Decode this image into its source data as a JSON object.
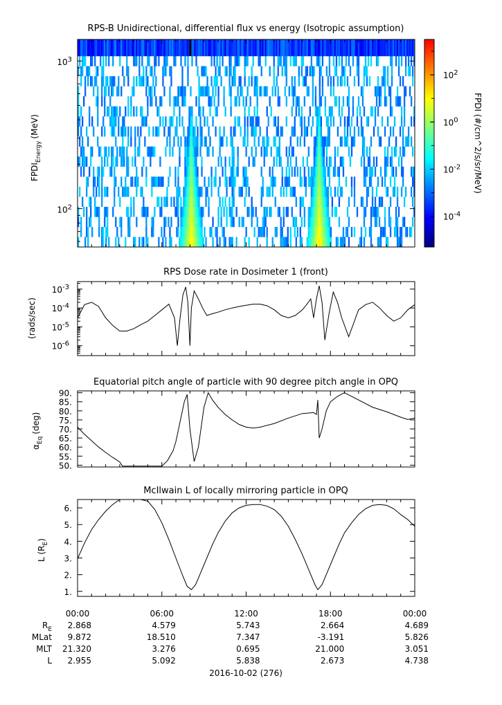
{
  "chart_data": [
    {
      "type": "heatmap",
      "title": "RPS-B  Unidirectional, differential flux vs energy (Isotropic assumption)",
      "ylabel_main": "FPDI",
      "ylabel_sub": "Energy",
      "ylabel_unit": "(MeV)",
      "ylog": true,
      "ylim": [
        55,
        1400
      ],
      "ytick_base": "10",
      "ytick_exps": [
        "3",
        "2"
      ],
      "ytick_values": [
        1000,
        100
      ],
      "colorbar": {
        "label": "FPDI (#/cm^2/s/sr/MeV)",
        "log": true,
        "range_exp": [
          -5.3,
          3.5
        ],
        "tick_base": "10",
        "tick_exps": [
          "2",
          "0",
          "-2",
          "-4"
        ],
        "tick_values": [
          2,
          0,
          -2,
          -4
        ],
        "colors": [
          "#00007f",
          "#0000ff",
          "#007fff",
          "#00ffff",
          "#7fff7f",
          "#ffff00",
          "#ff7f00",
          "#ff0000"
        ]
      },
      "peaks": [
        {
          "x_hours": 8.1,
          "log_peak": 1.2
        },
        {
          "x_hours": 17.2,
          "log_peak": 1.3
        }
      ]
    },
    {
      "type": "line",
      "title": "RPS  Dose rate in Dosimeter 1 (front)",
      "ylabel": "(rads/sec)",
      "ylog": true,
      "ylim": [
        3e-07,
        0.0025
      ],
      "ytick_base": "10",
      "ytick_exps": [
        "-3",
        "-4",
        "-5",
        "-6"
      ],
      "ytick_values": [
        0.001,
        0.0001,
        1e-05,
        1e-06
      ],
      "x_hours": [
        0,
        0.5,
        1.0,
        1.5,
        2.0,
        2.5,
        3.0,
        3.5,
        4.0,
        4.5,
        5.0,
        5.5,
        6.0,
        6.5,
        6.9,
        7.1,
        7.3,
        7.5,
        7.7,
        7.85,
        8.0,
        8.1,
        8.3,
        8.6,
        8.9,
        9.2,
        9.6,
        10.0,
        10.5,
        11.0,
        11.5,
        12.0,
        12.5,
        13.0,
        13.5,
        14.0,
        14.5,
        15.0,
        15.5,
        16.0,
        16.3,
        16.6,
        16.8,
        17.0,
        17.2,
        17.4,
        17.6,
        17.9,
        18.2,
        18.5,
        18.8,
        19.3,
        20.0,
        20.5,
        21.0,
        21.5,
        22.0,
        22.5,
        23.0,
        23.5,
        24.0
      ],
      "y": [
        3e-05,
        0.00015,
        0.0002,
        0.00012,
        3e-05,
        1.2e-05,
        6e-06,
        6e-06,
        8e-06,
        1.3e-05,
        2e-05,
        4e-05,
        8e-05,
        0.00016,
        3e-05,
        1e-06,
        3e-05,
        0.0005,
        0.0013,
        0.0002,
        1e-06,
        0.0001,
        0.0008,
        0.0003,
        0.0001,
        4e-05,
        5e-05,
        6e-05,
        8e-05,
        0.0001,
        0.00012,
        0.00014,
        0.00016,
        0.00016,
        0.00013,
        8e-05,
        4e-05,
        3e-05,
        4e-05,
        8e-05,
        0.00015,
        0.0003,
        3e-05,
        0.0003,
        0.0015,
        0.0002,
        2e-06,
        5e-05,
        0.0007,
        0.0002,
        3e-05,
        3e-06,
        8e-05,
        0.00015,
        0.0002,
        0.0001,
        4e-05,
        2e-05,
        3e-05,
        8e-05,
        0.00015
      ]
    },
    {
      "type": "line",
      "title": "Equatorial pitch angle of particle with 90 degree pitch angle in OPQ",
      "ylabel_main": "α",
      "ylabel_sub": "Eq",
      "ylabel_unit": "(deg)",
      "ylim": [
        49,
        91
      ],
      "yticks": [
        "90.",
        "85.",
        "80.",
        "75.",
        "70.",
        "65.",
        "60.",
        "55.",
        "50."
      ],
      "ytick_values": [
        90,
        85,
        80,
        75,
        70,
        65,
        60,
        55,
        50
      ],
      "x_hours": [
        0,
        0.5,
        1.0,
        1.5,
        2.0,
        2.5,
        3.0,
        3.2,
        6.0,
        6.4,
        6.8,
        7.0,
        7.3,
        7.6,
        7.8,
        8.0,
        8.3,
        8.6,
        9.0,
        9.3,
        9.6,
        10.0,
        10.5,
        11.0,
        11.5,
        12.0,
        12.5,
        13.0,
        14.0,
        15.0,
        16.0,
        16.8,
        17.0,
        17.1,
        17.2,
        17.4,
        17.7,
        18.0,
        18.5,
        19.0,
        20.0,
        21.0,
        22.0,
        23.0,
        23.5,
        24.0
      ],
      "y": [
        71.0,
        67.0,
        63.5,
        60.0,
        57.0,
        54.3,
        51.8,
        49.5,
        49.5,
        52.5,
        58.0,
        63.0,
        74.0,
        85.0,
        89.0,
        70.0,
        52.0,
        60.0,
        82.0,
        90.0,
        86.0,
        82.0,
        78.0,
        75.0,
        72.5,
        71.0,
        70.5,
        71.0,
        73.0,
        76.0,
        78.5,
        79.0,
        78.0,
        86.0,
        65.0,
        70.0,
        80.0,
        85.0,
        88.0,
        90.0,
        86.0,
        82.0,
        79.5,
        76.5,
        75.2,
        76.0
      ]
    },
    {
      "type": "line",
      "title": "McIlwain L of locally mirroring particle in OPQ",
      "ylabel_main": "L (R",
      "ylabel_sub": "E",
      "ylabel_end": ")",
      "ylim": [
        0.7,
        6.5
      ],
      "yticks": [
        "6.",
        "5.",
        "4.",
        "3.",
        "2.",
        "1."
      ],
      "ytick_values": [
        6,
        5,
        4,
        3,
        2,
        1
      ],
      "x_hours": [
        0,
        0.5,
        1.0,
        1.5,
        2.0,
        2.5,
        3.0,
        3.5,
        4.0,
        4.5,
        5.0,
        5.5,
        6.0,
        6.5,
        7.0,
        7.5,
        7.8,
        8.1,
        8.4,
        8.8,
        9.2,
        9.6,
        10.0,
        10.5,
        11.0,
        11.5,
        12.0,
        12.5,
        13.0,
        13.5,
        14.0,
        14.5,
        15.0,
        15.5,
        16.0,
        16.5,
        16.9,
        17.1,
        17.4,
        17.8,
        18.2,
        18.6,
        19.0,
        19.5,
        20.0,
        20.5,
        21.0,
        21.5,
        22.0,
        22.5,
        23.0,
        23.5,
        24.0
      ],
      "y": [
        2.95,
        3.9,
        4.7,
        5.3,
        5.8,
        6.2,
        6.5,
        6.6,
        6.6,
        6.6,
        6.4,
        5.9,
        5.1,
        4.1,
        3.0,
        1.9,
        1.3,
        1.1,
        1.4,
        2.2,
        3.0,
        3.8,
        4.5,
        5.2,
        5.7,
        6.0,
        6.15,
        6.2,
        6.2,
        6.1,
        5.9,
        5.5,
        4.9,
        4.1,
        3.2,
        2.2,
        1.4,
        1.1,
        1.4,
        2.2,
        3.0,
        3.8,
        4.5,
        5.1,
        5.6,
        5.95,
        6.15,
        6.2,
        6.15,
        5.95,
        5.6,
        5.3,
        4.9
      ]
    }
  ],
  "xaxis": {
    "range_hours": [
      0,
      24
    ],
    "tick_labels": [
      "00:00",
      "06:00",
      "12:00",
      "18:00",
      "00:00"
    ],
    "tick_hours": [
      0,
      6,
      12,
      18,
      24
    ],
    "date_label": "2016-10-02 (276)"
  },
  "ephemeris": {
    "rows": [
      {
        "label_main": "R",
        "label_sub": "E",
        "values": [
          "2.868",
          "4.579",
          "5.743",
          "2.664",
          "4.689"
        ]
      },
      {
        "label_main": "MLat",
        "label_sub": "",
        "values": [
          "9.872",
          "18.510",
          "7.347",
          "-3.191",
          "5.826"
        ]
      },
      {
        "label_main": "MLT",
        "label_sub": "",
        "values": [
          "21.320",
          "3.276",
          "0.695",
          "21.000",
          "3.051"
        ]
      },
      {
        "label_main": "L",
        "label_sub": "",
        "values": [
          "2.955",
          "5.092",
          "5.838",
          "2.673",
          "4.738"
        ]
      }
    ]
  }
}
